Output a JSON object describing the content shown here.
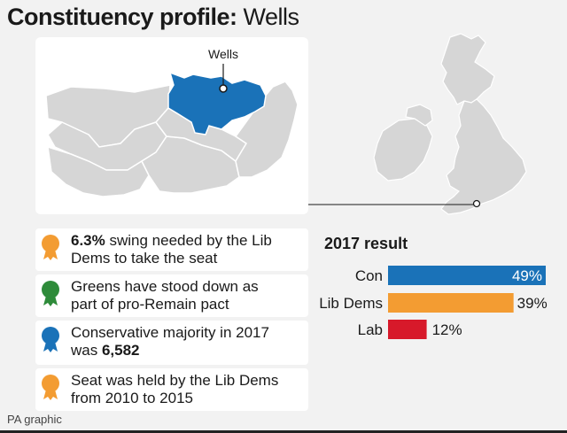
{
  "header": {
    "title_bold": "Constituency profile:",
    "title_rest": " Wells"
  },
  "map": {
    "label": "Wells",
    "highlight_color": "#1a72b8",
    "region_color": "#d6d6d6"
  },
  "facts": [
    {
      "pct": "6.3%",
      "text": " swing needed by the Lib Dems to take the seat",
      "pre": "",
      "bold": "6.3%",
      "post": " swing needed by the Lib\nDems to take the seat",
      "color": "#f39c32"
    },
    {
      "pre": "Greens have stood down as\npart of pro-Remain pact",
      "bold": "",
      "post": "",
      "color": "#2e8b3a"
    },
    {
      "pre": "Conservative majority in 2017\nwas ",
      "bold": "6,582",
      "post": "",
      "color": "#1a72b8"
    },
    {
      "pre": "Seat was held by the Lib Dems\nfrom 2010 to 2015",
      "bold": "",
      "post": "",
      "color": "#f39c32"
    }
  ],
  "chart_title": "2017 result",
  "chart_data": {
    "type": "bar",
    "title": "2017 result",
    "categories": [
      "Con",
      "Lib Dems",
      "Lab"
    ],
    "values": [
      49,
      39,
      12
    ],
    "value_labels": [
      "49%",
      "39%",
      "12%"
    ],
    "colors": [
      "#1a72b8",
      "#f39c32",
      "#d7192a"
    ],
    "xlim": [
      0,
      49
    ]
  },
  "footer": {
    "credit": "PA graphic"
  }
}
